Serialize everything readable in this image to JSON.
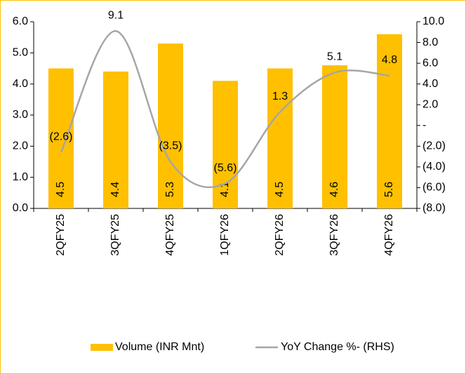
{
  "chart_data": {
    "type": "bar_line",
    "categories": [
      "2QFY25",
      "3QFY25",
      "4QFY25",
      "1QFY26",
      "2QFY26",
      "3QFY26",
      "4QFY26"
    ],
    "series": [
      {
        "name": "Volume (INR Mnt)",
        "type": "bar",
        "color": "#ffc000",
        "values": [
          4.5,
          4.4,
          5.3,
          4.1,
          4.5,
          4.6,
          5.6
        ]
      },
      {
        "name": "YoY Change %- (RHS)",
        "type": "line",
        "axis": "y2",
        "color": "#a6a6a6",
        "values": [
          -2.6,
          9.1,
          -3.5,
          -5.6,
          1.3,
          5.1,
          4.8
        ],
        "value_labels": [
          "(2.6)",
          "9.1",
          "(3.5)",
          "(5.6)",
          "1.3",
          "5.1",
          "4.8"
        ]
      }
    ],
    "ylim": [
      0,
      6
    ],
    "yticks": [
      {
        "value": 0,
        "label": "0.0"
      },
      {
        "value": 1,
        "label": "1.0"
      },
      {
        "value": 2,
        "label": "2.0"
      },
      {
        "value": 3,
        "label": "3.0"
      },
      {
        "value": 4,
        "label": "4.0"
      },
      {
        "value": 5,
        "label": "5.0"
      },
      {
        "value": 6,
        "label": "6.0"
      }
    ],
    "y2lim": [
      -8,
      10
    ],
    "y2ticks": [
      {
        "value": -8,
        "label": "(8.0)"
      },
      {
        "value": -6,
        "label": "(6.0)"
      },
      {
        "value": -4,
        "label": "(4.0)"
      },
      {
        "value": -2,
        "label": "(2.0)"
      },
      {
        "value": 0,
        "label": "-"
      },
      {
        "value": 2,
        "label": "2.0"
      },
      {
        "value": 4,
        "label": "4.0"
      },
      {
        "value": 6,
        "label": "6.0"
      },
      {
        "value": 8,
        "label": "8.0"
      },
      {
        "value": 10,
        "label": "10.0"
      }
    ],
    "legend": "bottom"
  }
}
